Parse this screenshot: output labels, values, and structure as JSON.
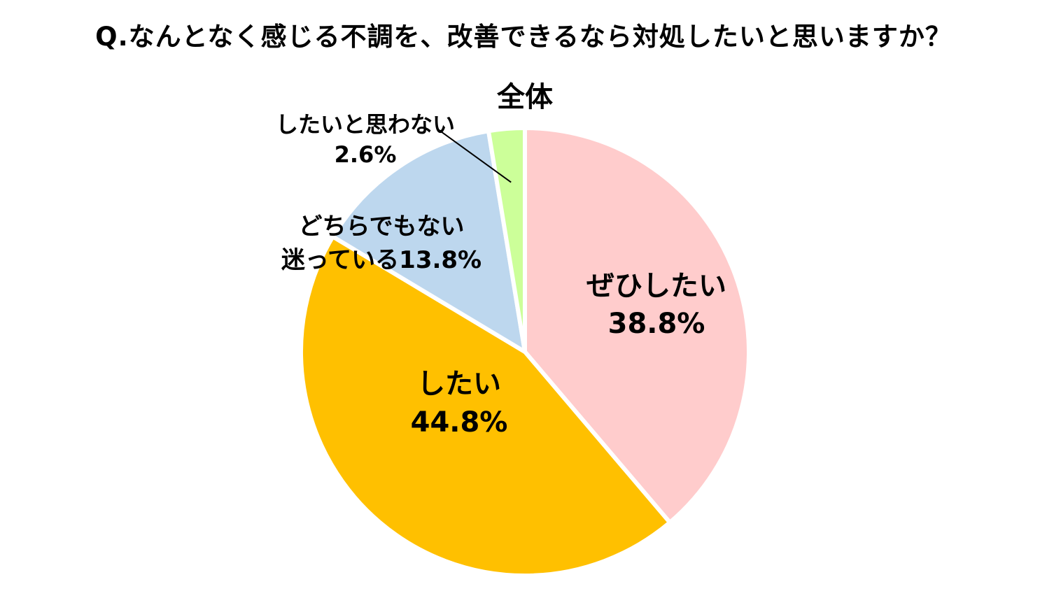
{
  "question": "Q.なんとなく感じる不調を、改善できるなら対処したいと思いますか？",
  "chart_data": {
    "type": "pie",
    "title": "全体",
    "unit": "%",
    "start_angle_deg": 0,
    "direction": "clockwise",
    "slices": [
      {
        "label": "ぜひしたい",
        "value": 38.8,
        "value_text": "38.8%",
        "color": "#FFCCCC"
      },
      {
        "label": "したい",
        "value": 44.8,
        "value_text": "44.8%",
        "color": "#FFC000"
      },
      {
        "label": "どちらでもない迷っている",
        "label_lines": [
          "どちらでもない",
          "迷っている"
        ],
        "value": 13.8,
        "value_text": "13.8%",
        "color": "#BDD7EE"
      },
      {
        "label": "したいと思わない",
        "value": 2.6,
        "value_text": "2.6%",
        "color": "#CCFF99"
      }
    ]
  }
}
